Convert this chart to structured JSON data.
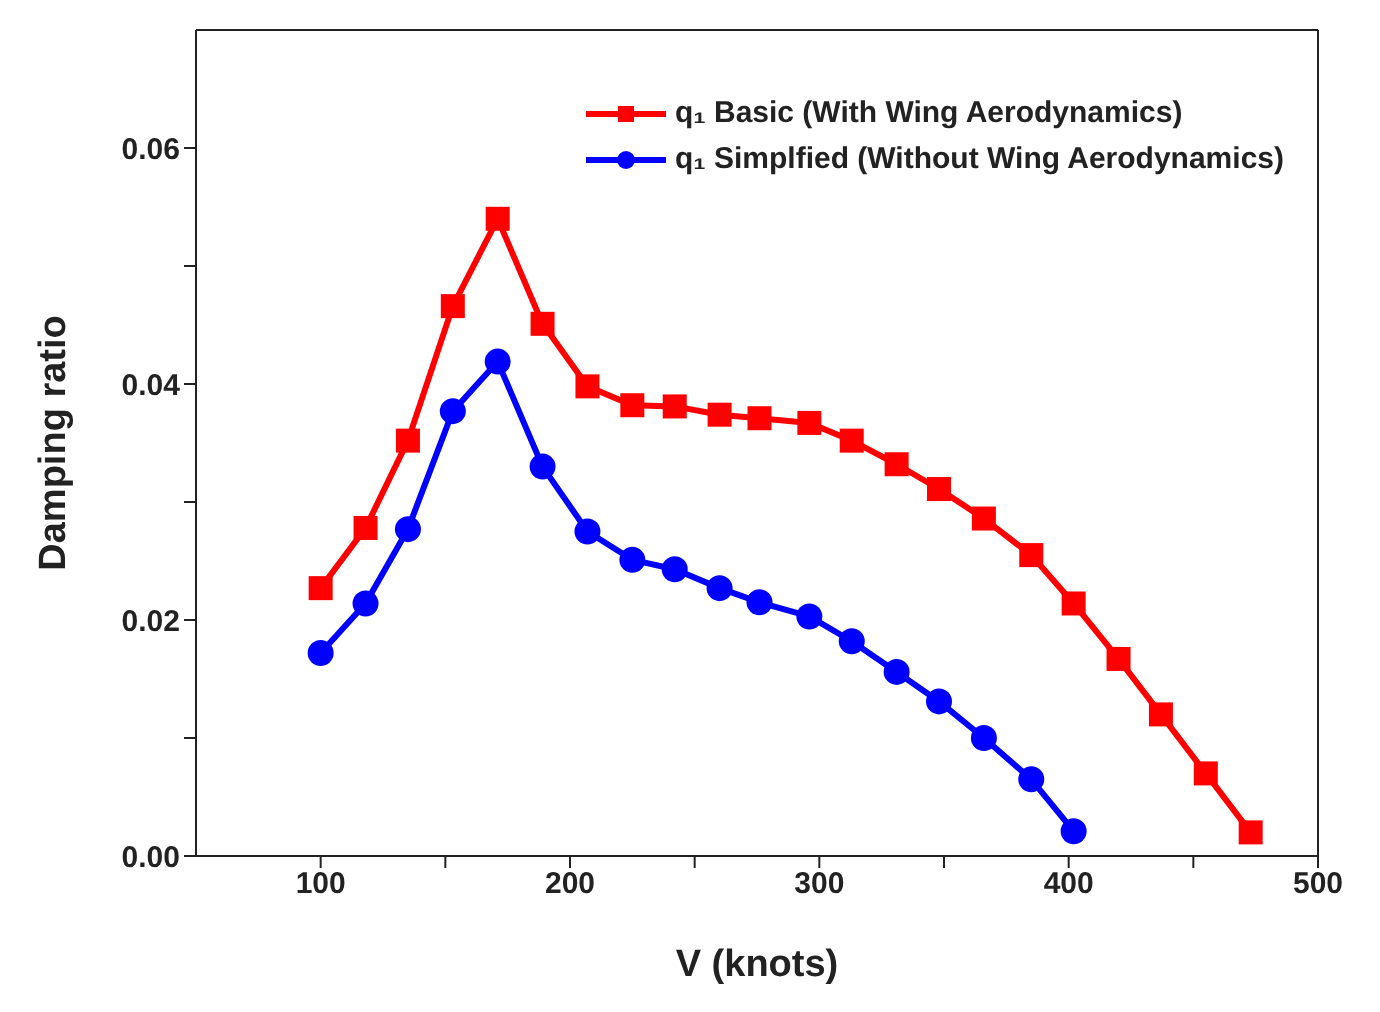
{
  "chart_data": {
    "type": "line",
    "xlabel": "V (knots)",
    "ylabel": "Damping ratio",
    "xlim": [
      50,
      500
    ],
    "xticks": [
      100,
      {
        "value": 150,
        "label": null
      },
      200,
      {
        "value": 250,
        "label": null
      },
      300,
      {
        "value": 350,
        "label": null
      },
      400,
      {
        "value": 450,
        "label": null
      },
      500
    ],
    "ylim": [
      0,
      0.07
    ],
    "yticks": [
      {
        "value": 0,
        "label": "0.00"
      },
      {
        "value": 0.01,
        "label": null
      },
      {
        "value": 0.02,
        "label": "0.02"
      },
      {
        "value": 0.03,
        "label": null
      },
      {
        "value": 0.04,
        "label": "0.04"
      },
      {
        "value": 0.05,
        "label": null
      },
      {
        "value": 0.06,
        "label": "0.06"
      }
    ],
    "grid": false,
    "legend": "top right",
    "line_style": "solid",
    "series": [
      {
        "name": "q₁ Basic (With Wing Aerodynamics)",
        "color": "#ff0000",
        "marker": "square",
        "x": [
          100,
          118,
          135,
          153,
          171,
          189,
          207,
          225,
          242,
          260,
          276,
          296,
          313,
          331,
          348,
          366,
          385,
          402,
          420,
          437,
          455,
          473
        ],
        "values": [
          0.0227,
          0.0278,
          0.0352,
          0.0466,
          0.054,
          0.0451,
          0.0398,
          0.0382,
          0.0381,
          0.0374,
          0.0371,
          0.0367,
          0.0352,
          0.0332,
          0.0311,
          0.0286,
          0.0255,
          0.0214,
          0.0167,
          0.012,
          0.007,
          0.002
        ]
      },
      {
        "name": "q₁ Simplfied (Without Wing Aerodynamics)",
        "color": "#0000ff",
        "marker": "circle",
        "x": [
          100,
          118,
          135,
          153,
          171,
          189,
          207,
          225,
          242,
          260,
          276,
          296,
          313,
          331,
          348,
          366,
          385,
          402
        ],
        "values": [
          0.0172,
          0.0214,
          0.0277,
          0.0377,
          0.0419,
          0.033,
          0.0275,
          0.0251,
          0.0243,
          0.0227,
          0.0215,
          0.0203,
          0.0182,
          0.0156,
          0.0131,
          0.01,
          0.0065,
          0.0021
        ]
      }
    ]
  }
}
